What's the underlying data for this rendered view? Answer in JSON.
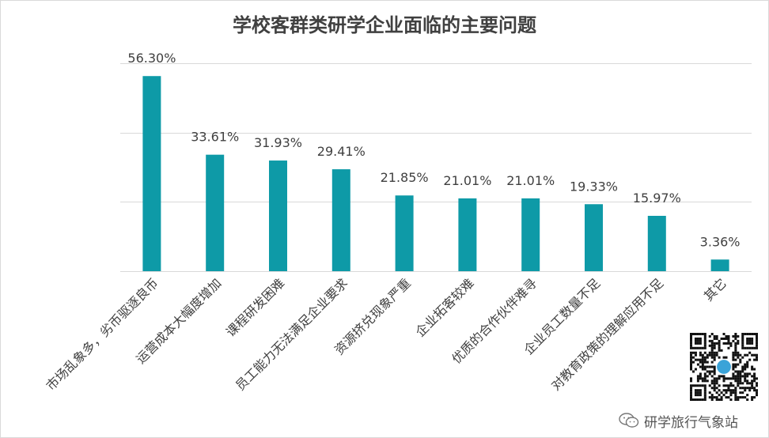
{
  "chart_data": {
    "type": "bar",
    "title": "学校客群类研学企业面临的主要问题",
    "categories": [
      "市场乱象多，劣币驱逐良币",
      "运营成本大幅度增加",
      "课程研发困难",
      "员工能力无法满足企业要求",
      "资源挤兑现象严重",
      "企业拓客较难",
      "优质的合作伙伴难寻",
      "企业员工数量不足",
      "对教育政策的理解应用不足",
      "其它"
    ],
    "values": [
      56.3,
      33.61,
      31.93,
      29.41,
      21.85,
      21.01,
      21.01,
      19.33,
      15.97,
      3.36
    ],
    "data_labels": [
      "56.30%",
      "33.61%",
      "31.93%",
      "29.41%",
      "21.85%",
      "21.01%",
      "21.01%",
      "19.33%",
      "15.97%",
      "3.36%"
    ],
    "ylim": [
      0,
      60
    ],
    "grid": true,
    "bar_color": "#0e9aa7",
    "grid_color": "#d9d9d9"
  },
  "watermark": {
    "text": "研学旅行气象站",
    "icon": "wechat-icon"
  },
  "qr_icon": "qr-code-icon"
}
